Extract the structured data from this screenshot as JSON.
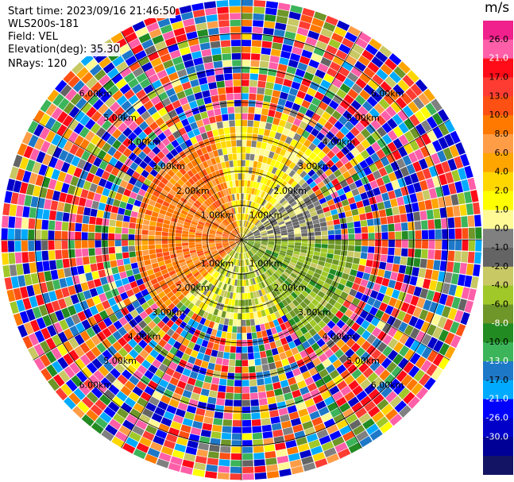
{
  "header": {
    "start_time": "Start time: 2023/09/16 21:46:50",
    "instrument": "WLS200s-181",
    "field": "Field: VEL",
    "elevation": "Elevation(deg): 35.30",
    "nrays": "NRays: 120"
  },
  "colorbar": {
    "unit": "m/s",
    "ticks": [
      "26.0",
      "21.0",
      "17.0",
      "13.0",
      "10.0",
      "8.0",
      "6.0",
      "4.0",
      "2.0",
      "1.0",
      "0.0",
      "-1.0",
      "-2.0",
      "-4.0",
      "-6.0",
      "-8.0",
      "-10.0",
      "-13.0",
      "-17.0",
      "-21.0",
      "-26.0",
      "-30.0"
    ],
    "colors": [
      "#f0208c",
      "#ff5fa8",
      "#ff0c18",
      "#ff3c32",
      "#ff5014",
      "#ff7800",
      "#ff9d47",
      "#ffa500",
      "#ffd700",
      "#ffff00",
      "#fffa96",
      "#808080",
      "#646464",
      "#c8c864",
      "#a0c828",
      "#6e9628",
      "#228b22",
      "#3cb45a",
      "#1e78c8",
      "#00aaff",
      "#0000ff",
      "#0000c8",
      "#000096",
      "#141464"
    ]
  },
  "chart_data": {
    "type": "ppi",
    "range_rings_km": [
      1.0,
      2.0,
      3.0,
      4.0,
      5.0,
      6.0
    ],
    "range_ring_labels": [
      "1.00km",
      "2.00km",
      "3.00km",
      "4.00km",
      "5.00km",
      "6.00km"
    ],
    "azimuth_spokes_deg": [
      0,
      30,
      60,
      90,
      120,
      150,
      180,
      210,
      240,
      270,
      300,
      330
    ],
    "max_range_km": 7.0,
    "nrays": 120,
    "nrange_gates": 36,
    "velocity_range": [
      -30.0,
      26.0
    ],
    "sector_patterns": [
      {
        "az_from": 225,
        "az_to": 345,
        "r_to_km": 3.0,
        "values": [
          10,
          10,
          8,
          8,
          6
        ]
      },
      {
        "az_from": 345,
        "az_to": 45,
        "r_to_km": 3.5,
        "values": [
          2,
          4,
          1,
          0,
          2
        ]
      },
      {
        "az_from": 45,
        "az_to": 90,
        "r_to_km": 2.5,
        "values": [
          -2,
          -1,
          0,
          -2
        ]
      },
      {
        "az_from": 90,
        "az_to": 150,
        "r_to_km": 3.5,
        "values": [
          -6,
          -6,
          -4,
          -8,
          -6
        ]
      },
      {
        "az_from": 150,
        "az_to": 225,
        "r_to_km": 2.5,
        "values": [
          -4,
          1,
          0,
          2,
          -6
        ]
      }
    ]
  }
}
